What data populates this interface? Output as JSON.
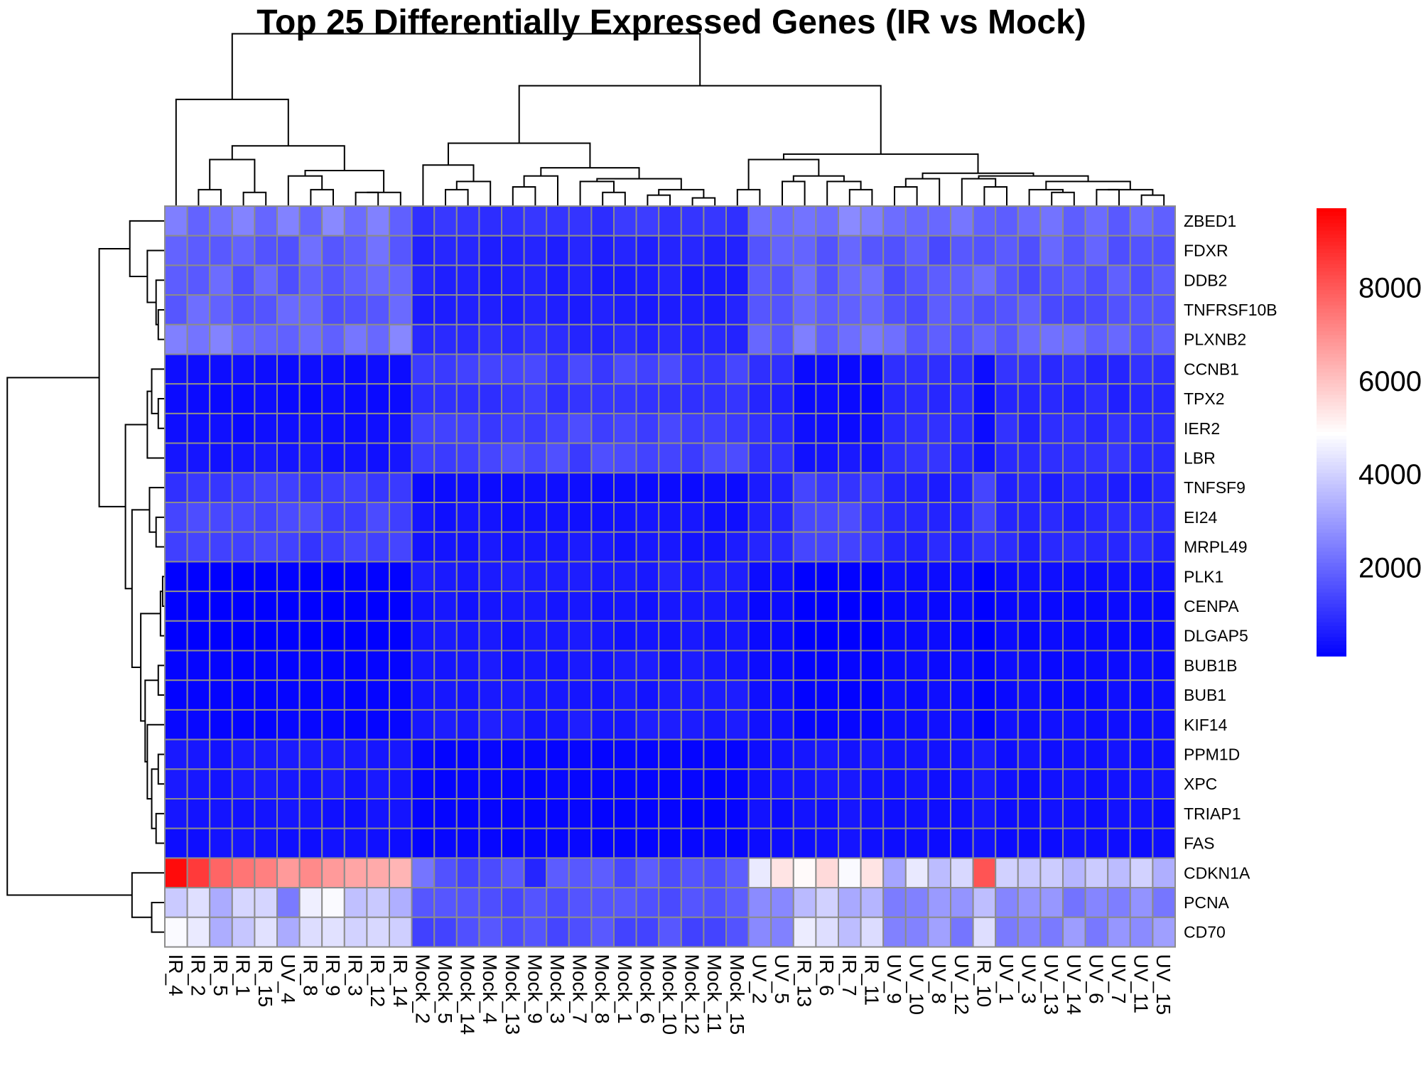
{
  "chart_data": {
    "type": "heatmap",
    "title": "Top 25 Differentially Expressed Genes (IR vs Mock)",
    "columns": [
      "IR_4",
      "IR_2",
      "IR_5",
      "IR_1",
      "IR_15",
      "UV_4",
      "IR_8",
      "IR_9",
      "IR_3",
      "IR_12",
      "IR_14",
      "Mock_2",
      "Mock_5",
      "Mock_14",
      "Mock_4",
      "Mock_13",
      "Mock_9",
      "Mock_3",
      "Mock_7",
      "Mock_8",
      "Mock_1",
      "Mock_6",
      "Mock_10",
      "Mock_12",
      "Mock_11",
      "Mock_15",
      "UV_2",
      "UV_5",
      "IR_13",
      "IR_6",
      "IR_7",
      "IR_11",
      "UV_9",
      "UV_10",
      "UV_8",
      "UV_12",
      "IR_10",
      "UV_1",
      "UV_3",
      "UV_13",
      "UV_14",
      "UV_6",
      "UV_7",
      "UV_11",
      "UV_15"
    ],
    "rows": [
      "ZBED1",
      "FDXR",
      "DDB2",
      "TNFRSF10B",
      "PLXNB2",
      "CCNB1",
      "TPX2",
      "IER2",
      "LBR",
      "TNFSF9",
      "EI24",
      "MRPL49",
      "PLK1",
      "CENPA",
      "DLGAP5",
      "BUB1B",
      "BUB1",
      "KIF14",
      "PPM1D",
      "XPC",
      "TRIAP1",
      "FAS",
      "CDKN1A",
      "PCNA",
      "CD70"
    ],
    "row_base": [
      2000,
      1600,
      1500,
      1500,
      1800,
      550,
      500,
      600,
      700,
      800,
      900,
      900,
      250,
      200,
      200,
      250,
      250,
      300,
      350,
      350,
      300,
      300,
      4500,
      2500,
      2600
    ],
    "group_mult": {
      "ZBED1": [
        1.15,
        0.55,
        1.05
      ],
      "FDXR": [
        1.2,
        0.45,
        1.1
      ],
      "DDB2": [
        1.25,
        0.45,
        1.1
      ],
      "TNFRSF10B": [
        1.25,
        0.45,
        1.1
      ],
      "PLXNB2": [
        1.25,
        0.5,
        1.05
      ],
      "CCNB1": [
        0.6,
        2.4,
        1.7
      ],
      "TPX2": [
        0.6,
        2.3,
        1.6
      ],
      "IER2": [
        0.6,
        2.3,
        1.5
      ],
      "LBR": [
        0.7,
        2.0,
        1.4
      ],
      "TNFSF9": [
        1.5,
        0.45,
        0.9
      ],
      "EI24": [
        1.5,
        0.5,
        0.9
      ],
      "MRPL49": [
        1.4,
        0.6,
        0.9
      ],
      "PLK1": [
        0.5,
        2.6,
        1.4
      ],
      "CENPA": [
        0.5,
        2.5,
        1.4
      ],
      "DLGAP5": [
        0.5,
        2.5,
        1.4
      ],
      "BUB1B": [
        0.7,
        2.2,
        1.3
      ],
      "BUB1": [
        0.7,
        2.2,
        1.3
      ],
      "KIF14": [
        0.7,
        2.0,
        1.2
      ],
      "PPM1D": [
        1.5,
        0.6,
        1.2
      ],
      "XPC": [
        1.5,
        0.6,
        1.2
      ],
      "TRIAP1": [
        1.5,
        0.6,
        1.3
      ],
      "FAS": [
        1.4,
        0.7,
        1.2
      ],
      "CDKN1A": [
        1.55,
        0.35,
        0.85
      ],
      "PCNA": [
        1.5,
        0.65,
        1.05
      ],
      "CD70": [
        1.5,
        0.6,
        1.05
      ]
    },
    "overrides": {
      "CDKN1A": {
        "IR_4": 9500,
        "IR_2": 8600,
        "IR_5": 7800,
        "IR_1": 7500,
        "IR_15": 7300,
        "UV_4": 6800,
        "IR_8": 7100,
        "IR_9": 6800,
        "IR_3": 6600,
        "IR_12": 6500,
        "IR_14": 6300,
        "UV_2": 4500,
        "UV_5": 5400,
        "IR_13": 5000,
        "IR_6": 5600,
        "IR_7": 4800,
        "IR_11": 5400,
        "Mock_9": 800,
        "Mock_2": 2300
      },
      "PCNA": {
        "IR_4": 3900,
        "IR_2": 4300,
        "IR_8": 4600,
        "IR_9": 4800,
        "UV_4": 2400
      },
      "CD70": {
        "IR_4": 4800,
        "IR_2": 4500,
        "IR_14": 4000
      }
    },
    "row_order_note": "",
    "colorbar": {
      "min": 100,
      "max": 9700,
      "ticks": [
        2000,
        4000,
        6000,
        8000
      ],
      "colors": [
        "#0000ff",
        "#ffffff",
        "#ff0000"
      ],
      "mid": 4900
    },
    "grid": true,
    "legend_position": "right"
  }
}
